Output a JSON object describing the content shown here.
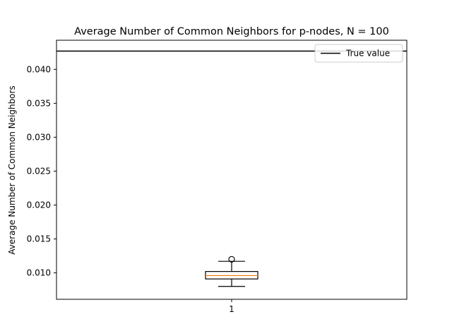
{
  "chart_data": {
    "type": "box",
    "title": "Average Number of Common Neighbors for p-nodes, N = 100",
    "xlabel": "",
    "ylabel": "Average Number of Common Neighbors",
    "categories": [
      "1"
    ],
    "ylim": [
      0.0061,
      0.0443
    ],
    "yticks": [
      0.01,
      0.015,
      0.02,
      0.025,
      0.03,
      0.035,
      0.04
    ],
    "ytick_labels": [
      "0.010",
      "0.015",
      "0.020",
      "0.025",
      "0.030",
      "0.035",
      "0.040"
    ],
    "box": {
      "whisker_low": 0.008,
      "q1": 0.0091,
      "median": 0.0096,
      "q3": 0.0102,
      "whisker_high": 0.0117,
      "outliers": [
        0.012
      ]
    },
    "reference_line": {
      "name": "True value",
      "value": 0.0427
    },
    "legend": {
      "placement": "top-right",
      "entries": [
        "True value"
      ]
    },
    "grid": false,
    "colors": {
      "box": "#000000",
      "median": "#ff7f0e",
      "reference": "#000000"
    }
  }
}
